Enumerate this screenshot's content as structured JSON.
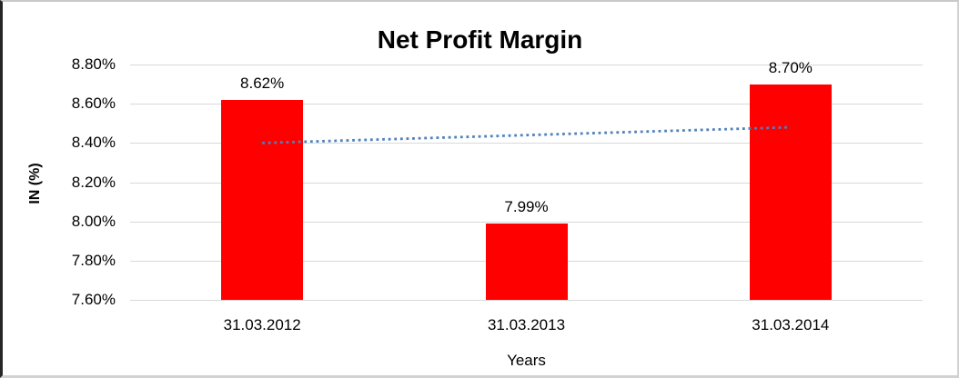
{
  "chart_data": {
    "type": "bar",
    "title": "Net Profit Margin",
    "categories": [
      "31.03.2012",
      "31.03.2013",
      "31.03.2014"
    ],
    "values": [
      8.62,
      7.99,
      8.7
    ],
    "value_labels": [
      "8.62%",
      "7.99%",
      "8.70%"
    ],
    "xlabel": "Years",
    "ylabel": "IN (%)",
    "ylim": [
      7.6,
      8.8
    ],
    "yticks": [
      8.8,
      8.6,
      8.4,
      8.2,
      8.0,
      7.8,
      7.6
    ],
    "ytick_labels": [
      "8.80%",
      "8.60%",
      "8.40%",
      "8.20%",
      "8.00%",
      "7.80%",
      "7.60%"
    ],
    "grid": true,
    "legend": "none",
    "colors": {
      "bar": "#ff0000",
      "gridline": "#d9d9d9",
      "trendline": "#4f81bd",
      "text": "#000000",
      "background": "#ffffff"
    },
    "trendline": {
      "type": "linear",
      "style": "dotted",
      "from": {
        "category_index": 0,
        "value": 8.4
      },
      "to": {
        "category_index": 2,
        "value": 8.48
      }
    }
  }
}
